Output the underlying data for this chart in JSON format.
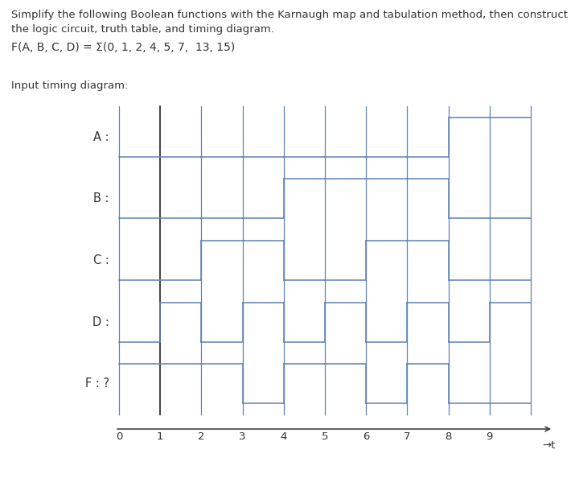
{
  "title_text": "Simplify the following Boolean functions with the Karnaugh map and tabulation method, then construct\nthe logic circuit, truth table, and timing diagram.",
  "function_text": "F(A, B, C, D) = Σ(0, 1, 2, 4, 5, 7,  13, 15)",
  "subtitle_text": "Input timing diagram:",
  "signals": [
    "A",
    "B",
    "C",
    "D",
    "F : ?"
  ],
  "num_ticks": 10,
  "signal_values": {
    "A": [
      0,
      0,
      0,
      0,
      0,
      0,
      0,
      0,
      1,
      1
    ],
    "B": [
      0,
      0,
      0,
      0,
      1,
      1,
      1,
      1,
      0,
      0
    ],
    "C": [
      0,
      0,
      1,
      1,
      0,
      0,
      1,
      1,
      0,
      0
    ],
    "D": [
      0,
      1,
      0,
      1,
      0,
      1,
      0,
      1,
      0,
      1
    ],
    "F : ?": [
      1,
      1,
      1,
      0,
      1,
      1,
      0,
      1,
      0,
      0
    ]
  },
  "waveform_color": "#5b82b5",
  "dark_line_color": "#333333",
  "bg_color": "#ffffff",
  "text_color": "#333333"
}
